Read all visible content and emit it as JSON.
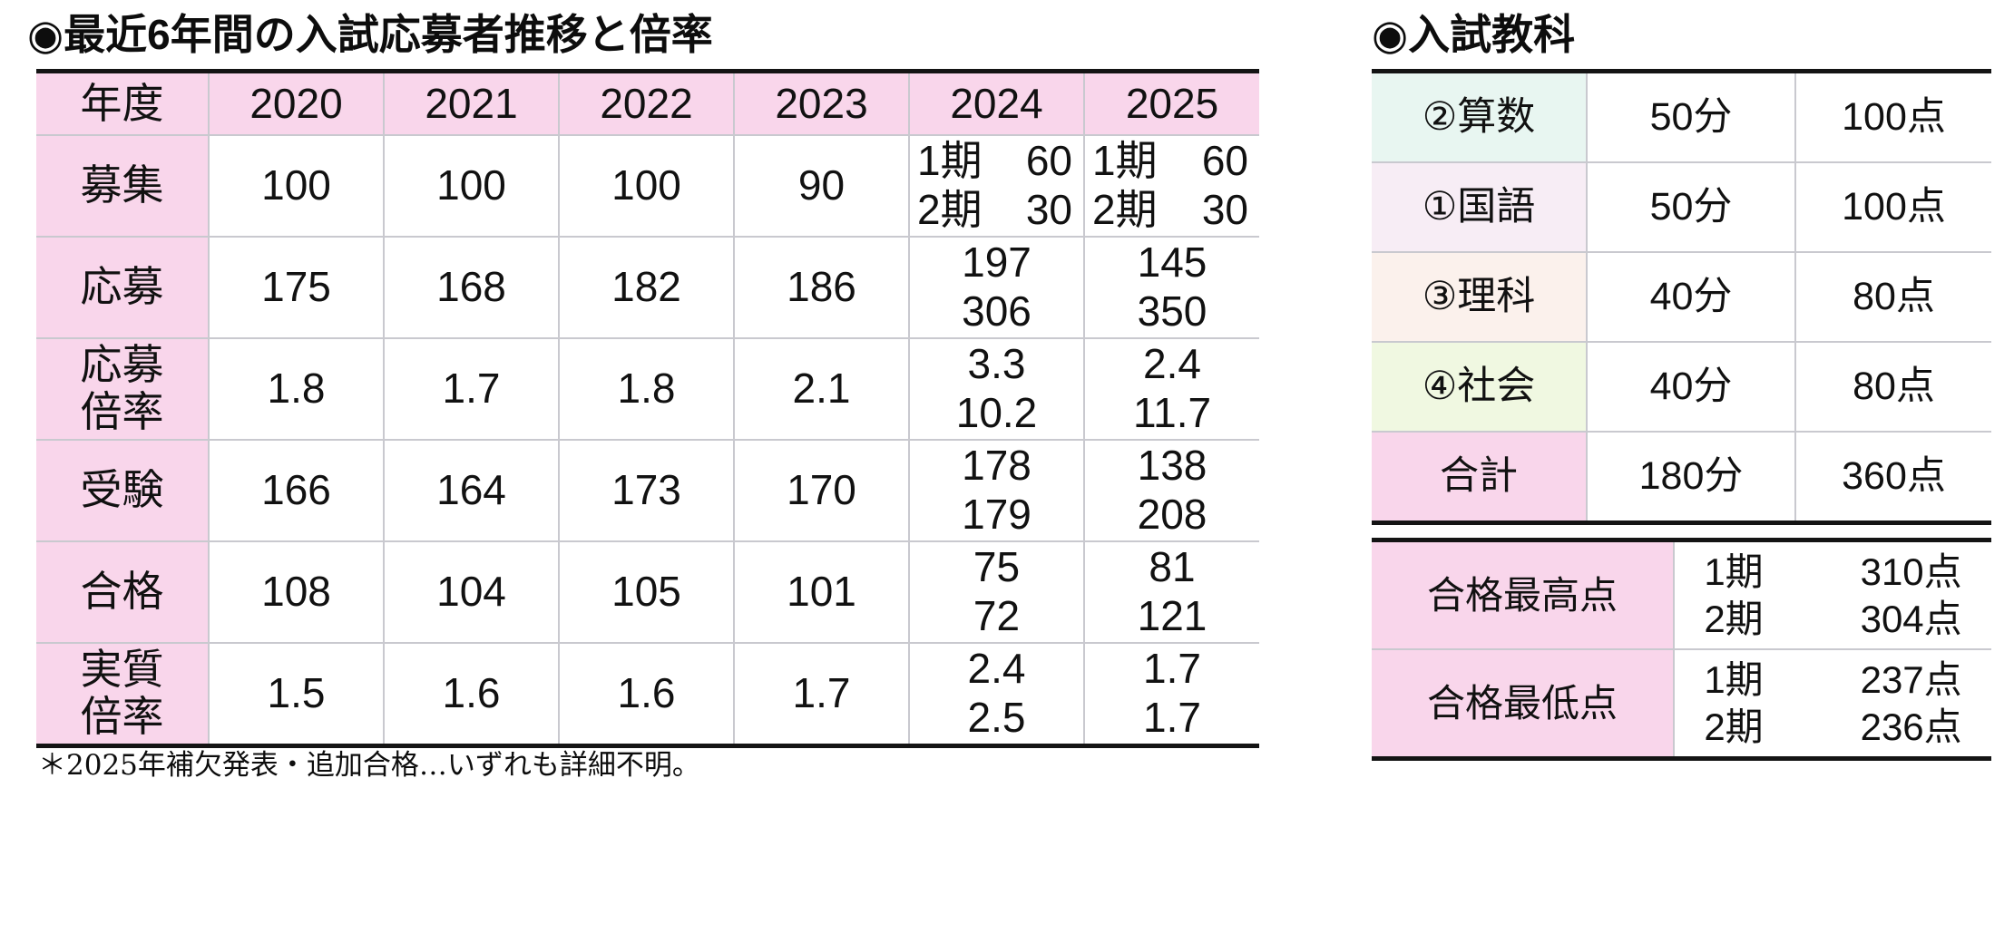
{
  "colors": {
    "pink": "#f9d6eb",
    "mint": "#e8f6f1",
    "lavender_pink": "#f7edf5",
    "peach": "#fbf1ec",
    "green": "#f0f8e1",
    "border_dark": "#141414",
    "border_light": "#c9c9cf"
  },
  "left": {
    "title": "◉最近6年間の入試応募者推移と倍率",
    "footnote": "＊2025年補欠発表・追加合格…いずれも詳細不明。",
    "table": {
      "columns": [
        "年度",
        "2020",
        "2021",
        "2022",
        "2023",
        "2024",
        "2025"
      ],
      "rows": [
        {
          "label": "募集",
          "cells": [
            {
              "t": "100"
            },
            {
              "t": "100"
            },
            {
              "t": "100"
            },
            {
              "t": "90"
            },
            {
              "pairs": [
                [
                  "1期",
                  "60"
                ],
                [
                  "2期",
                  "30"
                ]
              ]
            },
            {
              "pairs": [
                [
                  "1期",
                  "60"
                ],
                [
                  "2期",
                  "30"
                ]
              ]
            }
          ]
        },
        {
          "label": "応募",
          "cells": [
            {
              "t": "175"
            },
            {
              "t": "168"
            },
            {
              "t": "182"
            },
            {
              "t": "186"
            },
            {
              "lines": [
                "197",
                "306"
              ]
            },
            {
              "lines": [
                "145",
                "350"
              ]
            }
          ]
        },
        {
          "label": "応募\n倍率",
          "cells": [
            {
              "t": "1.8"
            },
            {
              "t": "1.7"
            },
            {
              "t": "1.8"
            },
            {
              "t": "2.1"
            },
            {
              "lines": [
                "3.3",
                "10.2"
              ]
            },
            {
              "lines": [
                "2.4",
                "11.7"
              ]
            }
          ]
        },
        {
          "label": "受験",
          "cells": [
            {
              "t": "166"
            },
            {
              "t": "164"
            },
            {
              "t": "173"
            },
            {
              "t": "170"
            },
            {
              "lines": [
                "178",
                "179"
              ]
            },
            {
              "lines": [
                "138",
                "208"
              ]
            }
          ]
        },
        {
          "label": "合格",
          "cells": [
            {
              "t": "108"
            },
            {
              "t": "104"
            },
            {
              "t": "105"
            },
            {
              "t": "101"
            },
            {
              "lines": [
                "75",
                "72"
              ]
            },
            {
              "lines": [
                "81",
                "121"
              ]
            }
          ]
        },
        {
          "label": "実質\n倍率",
          "cells": [
            {
              "t": "1.5"
            },
            {
              "t": "1.6"
            },
            {
              "t": "1.6"
            },
            {
              "t": "1.7"
            },
            {
              "lines": [
                "2.4",
                "2.5"
              ]
            },
            {
              "lines": [
                "1.7",
                "1.7"
              ]
            }
          ]
        }
      ]
    }
  },
  "right": {
    "title": "◉入試教科",
    "subjects": {
      "rows": [
        {
          "label": "②算数",
          "bg": "mint",
          "time": "50分",
          "score": "100点"
        },
        {
          "label": "①国語",
          "bg": "lavender_pink",
          "time": "50分",
          "score": "100点"
        },
        {
          "label": "③理科",
          "bg": "peach",
          "time": "40分",
          "score": "80点"
        },
        {
          "label": "④社会",
          "bg": "green",
          "time": "40分",
          "score": "80点"
        },
        {
          "label": "合計",
          "bg": "pink",
          "time": "180分",
          "score": "360点"
        }
      ]
    },
    "scores": {
      "rows": [
        {
          "label": "合格最高点",
          "pairs": [
            [
              "1期",
              "310点"
            ],
            [
              "2期",
              "304点"
            ]
          ]
        },
        {
          "label": "合格最低点",
          "pairs": [
            [
              "1期",
              "237点"
            ],
            [
              "2期",
              "236点"
            ]
          ]
        }
      ]
    }
  }
}
